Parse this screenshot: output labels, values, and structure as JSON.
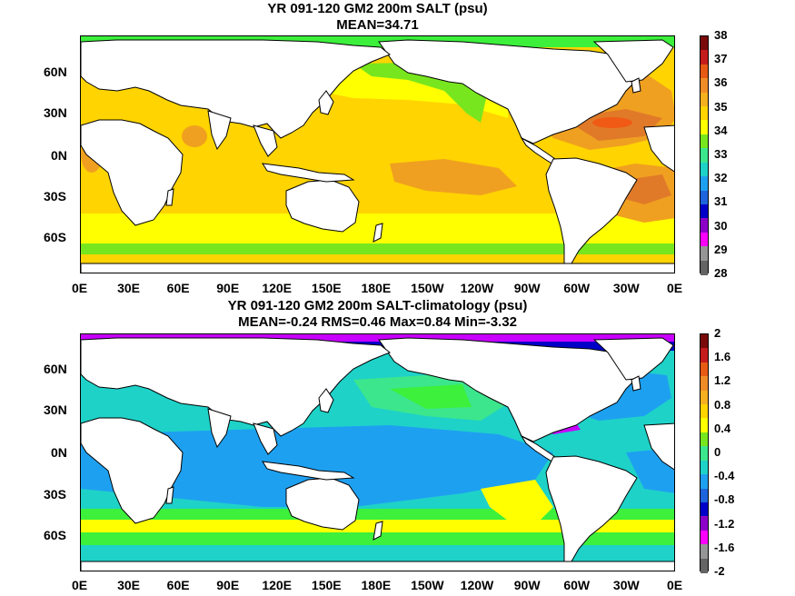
{
  "panels": [
    {
      "title_line1": "YR 091-120 GM2 200m SALT (psu)",
      "title_line2": "MEAN=34.71",
      "lat_labels": [
        "60N",
        "30N",
        "0N",
        "30S",
        "60S"
      ],
      "lon_labels": [
        "0E",
        "30E",
        "60E",
        "90E",
        "120E",
        "150E",
        "180E",
        "150W",
        "120W",
        "90W",
        "60W",
        "30W",
        "0E"
      ],
      "colorbar": {
        "labels": [
          "38",
          "37",
          "36",
          "35",
          "34",
          "33",
          "32",
          "31",
          "30",
          "29",
          "28"
        ],
        "colors": [
          "#7a0a0a",
          "#c41c1c",
          "#e65a14",
          "#f08c28",
          "#f5b020",
          "#ffd400",
          "#ffff00",
          "#78e61e",
          "#3ce68c",
          "#1ed2c8",
          "#1ea0f0",
          "#1e64dc",
          "#0000c8",
          "#8c00c8",
          "#ff00ff",
          "#969696",
          "#646464"
        ]
      },
      "palette": {
        "ocean": "#ffd400",
        "high_atl": "#e07a28",
        "veryhigh": "#f05a14",
        "arctic": "#3cf03c",
        "fresh": "#78e61e",
        "yellow": "#ffff00",
        "orange": "#f0a020"
      }
    },
    {
      "title_line1": "YR 091-120 GM2 200m SALT-climatology (psu)",
      "title_line2": "MEAN=-0.24   RMS=0.46   Max=0.84   Min=-3.32",
      "lat_labels": [
        "60N",
        "30N",
        "0N",
        "30S",
        "60S"
      ],
      "lon_labels": [
        "0E",
        "30E",
        "60E",
        "90E",
        "120E",
        "150E",
        "180E",
        "150W",
        "120W",
        "90W",
        "60W",
        "30W",
        "0E"
      ],
      "colorbar": {
        "labels": [
          "2",
          "1.6",
          "1.2",
          "0.8",
          "0.4",
          "0",
          "-0.4",
          "-0.8",
          "-1.2",
          "-1.6",
          "-2"
        ],
        "colors": [
          "#7a0a0a",
          "#c41c1c",
          "#e65a14",
          "#f08c28",
          "#f5b020",
          "#ffd400",
          "#ffff00",
          "#78e61e",
          "#3ce68c",
          "#1ed2c8",
          "#1ea0f0",
          "#1e64dc",
          "#0000c8",
          "#8c00c8",
          "#ff00ff",
          "#969696",
          "#646464"
        ]
      },
      "palette": {
        "ocean": "#1ed2c8",
        "cyan2": "#3ce68c",
        "blue": "#1ea0f0",
        "green": "#3cf03c",
        "yellow": "#ffff00",
        "purple": "#c800ff",
        "deepblue": "#0000c8"
      }
    }
  ]
}
